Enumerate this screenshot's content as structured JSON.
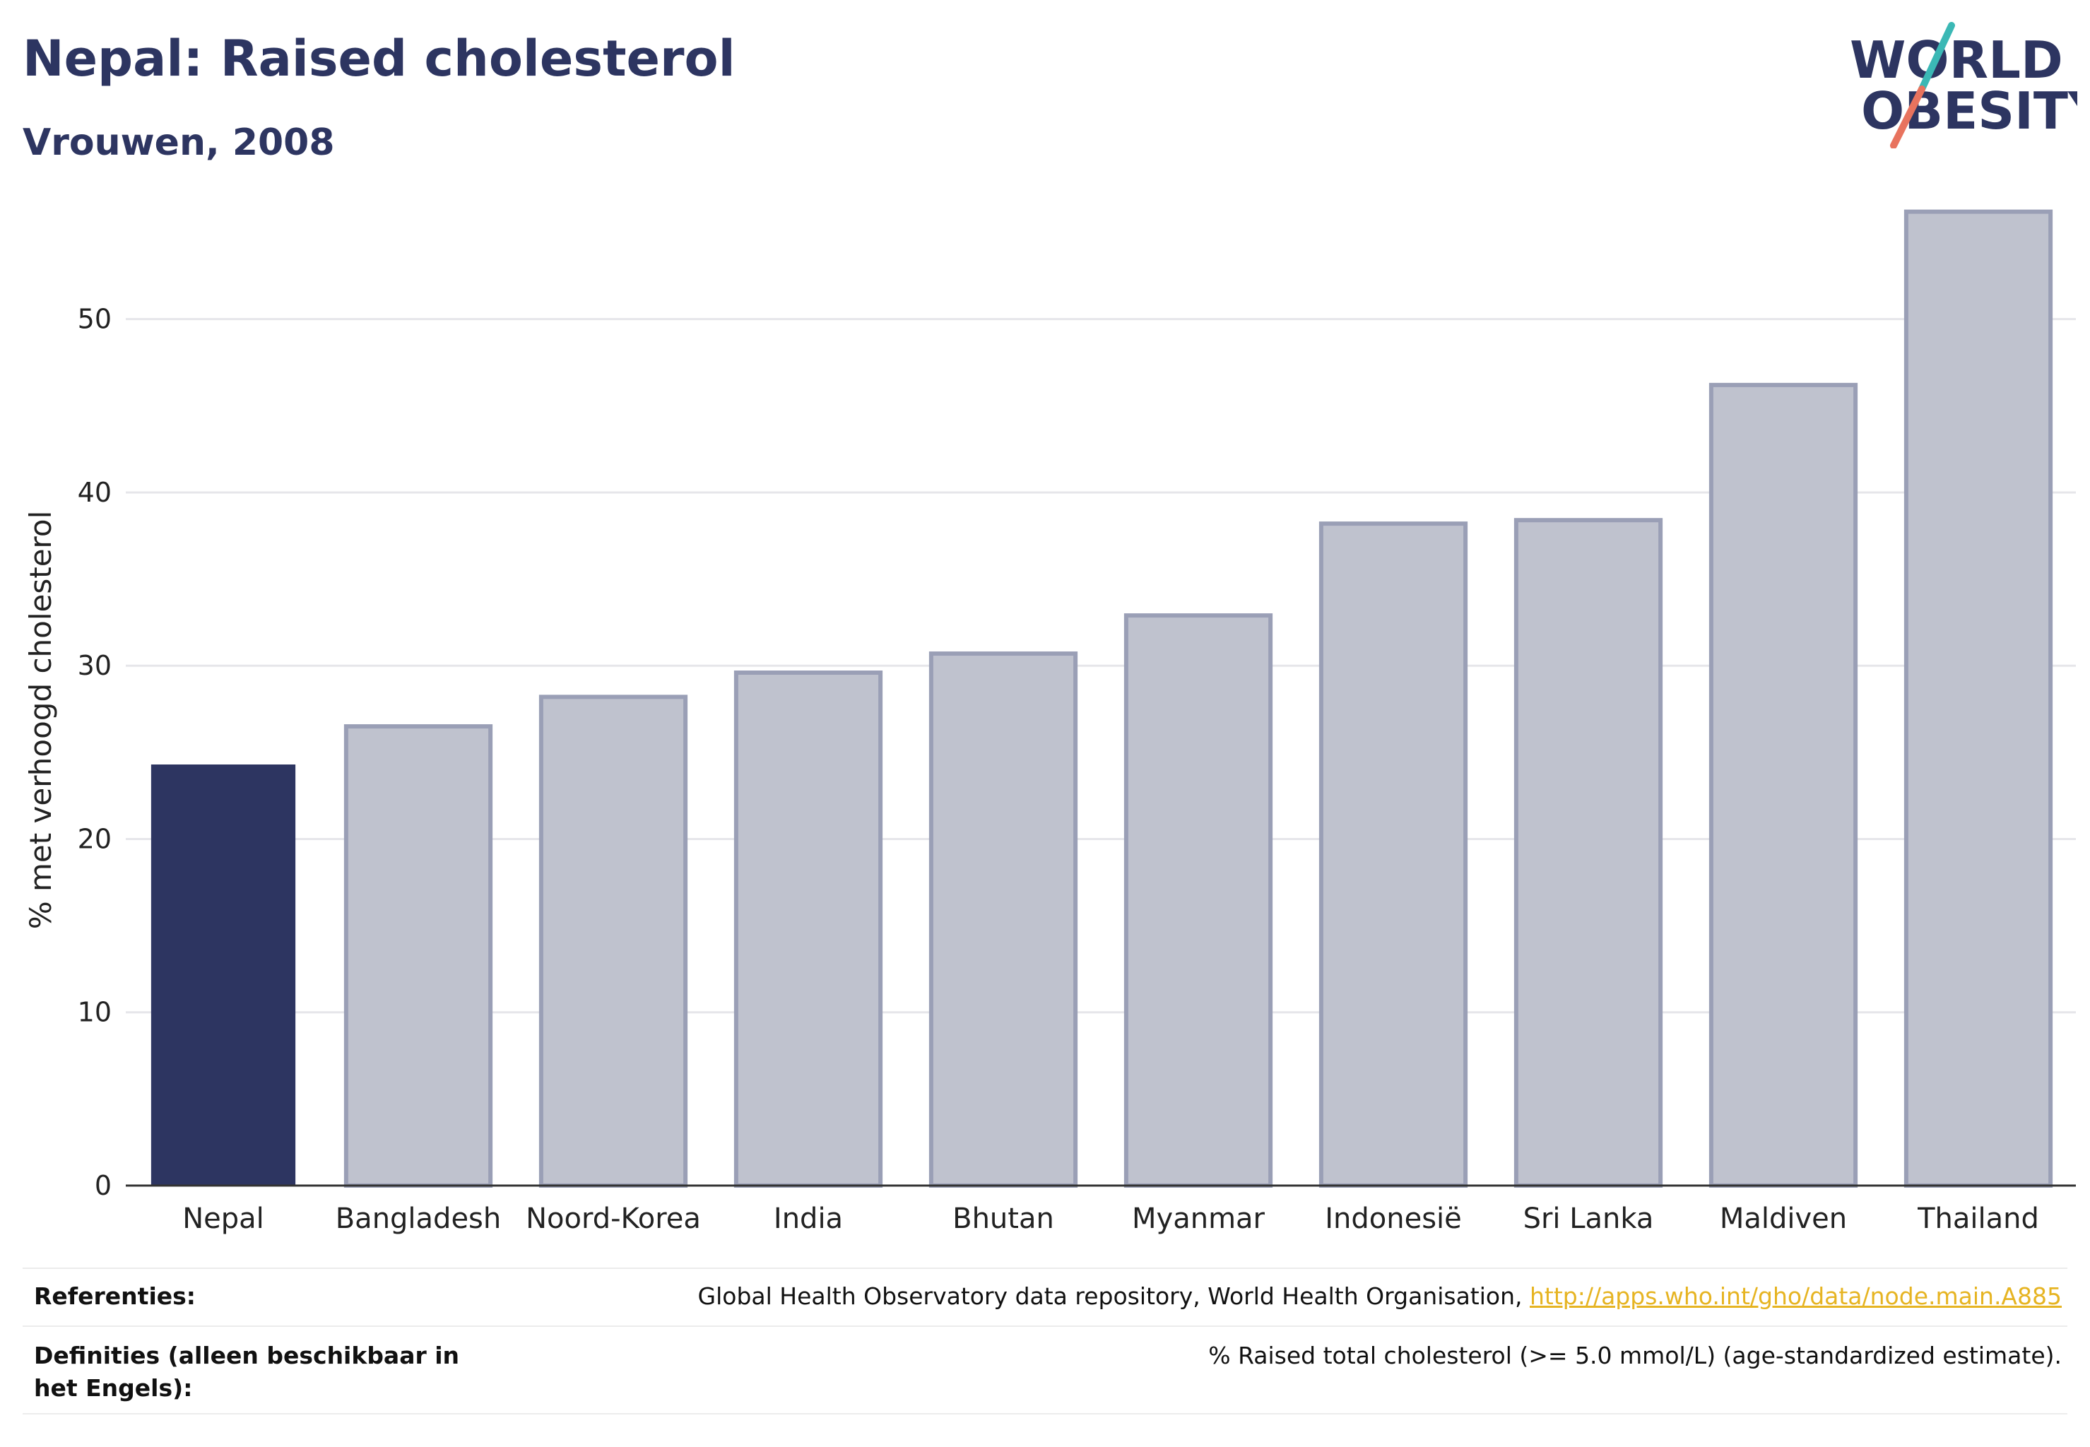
{
  "header": {
    "title": "Nepal: Raised cholesterol",
    "subtitle": "Vrouwen, 2008"
  },
  "logo": {
    "line1": "WORLD",
    "line2": "OBESITY",
    "colors": {
      "text": "#2d3561",
      "slash_top": "#3bb8b5",
      "slash_bottom": "#e8735e"
    }
  },
  "chart_data": {
    "type": "bar",
    "categories": [
      "Nepal",
      "Bangladesh",
      "Noord-Korea",
      "India",
      "Bhutan",
      "Myanmar",
      "Indonesië",
      "Sri Lanka",
      "Maldiven",
      "Thailand"
    ],
    "values": [
      24.3,
      26.5,
      28.2,
      29.6,
      30.7,
      32.9,
      38.2,
      38.4,
      46.2,
      56.2
    ],
    "highlight": "Nepal",
    "ylabel": "% met verhoogd cholesterol",
    "ylim": [
      0,
      57
    ],
    "yticks": [
      0,
      10,
      20,
      30,
      40,
      50
    ],
    "grid": true,
    "colors": {
      "highlight": "#2d3561",
      "other_fill": "#bfc2ce",
      "other_stroke": "#9a9fb6",
      "grid": "#e6e6ea",
      "axis": "#333333"
    }
  },
  "footer": {
    "references_label": "Referenties:",
    "references_text": "Global Health Observatory data repository, World Health Organisation, ",
    "references_link": "http://apps.who.int/gho/data/node.main.A885",
    "definitions_label": "Definities (alleen beschikbaar in het Engels):",
    "definitions_text": "% Raised total cholesterol (>= 5.0 mmol/L) (age-standardized estimate)."
  }
}
